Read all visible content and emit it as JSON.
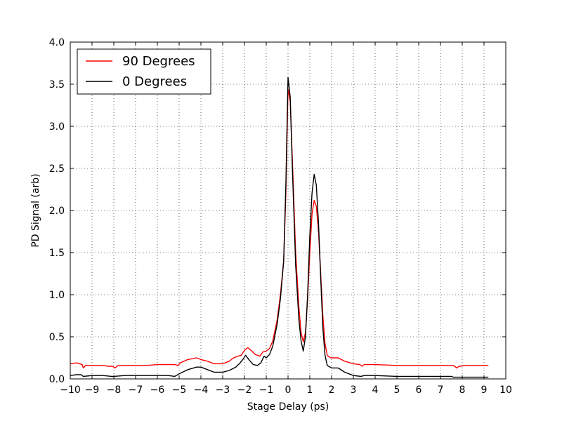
{
  "chart_data": {
    "type": "line",
    "title": "",
    "xlabel": "Stage Delay (ps)",
    "ylabel": "PD Signal (arb)",
    "xlim": [
      -10,
      10
    ],
    "ylim": [
      0.0,
      4.0
    ],
    "grid": true,
    "grid_style": "dotted",
    "legend_position": "top-left",
    "x_ticks": [
      -10,
      -9,
      -8,
      -7,
      -6,
      -5,
      -4,
      -3,
      -2,
      -1,
      0,
      1,
      2,
      3,
      4,
      5,
      6,
      7,
      8,
      9,
      10
    ],
    "x_tick_labels": [
      "−10",
      "−9",
      "−8",
      "−7",
      "−6",
      "−5",
      "−4",
      "−3",
      "−2",
      "−1",
      "0",
      "1",
      "2",
      "3",
      "4",
      "5",
      "6",
      "7",
      "8",
      "9",
      "10"
    ],
    "y_ticks": [
      0.0,
      0.5,
      1.0,
      1.5,
      2.0,
      2.5,
      3.0,
      3.5,
      4.0
    ],
    "y_tick_labels": [
      "0.0",
      "0.5",
      "1.0",
      "1.5",
      "2.0",
      "2.5",
      "3.0",
      "3.5",
      "4.0"
    ],
    "series": [
      {
        "name": "90 Degrees",
        "color": "#ff0000",
        "points": [
          [
            -10.0,
            0.18
          ],
          [
            -9.7,
            0.19
          ],
          [
            -9.45,
            0.17
          ],
          [
            -9.4,
            0.13
          ],
          [
            -9.3,
            0.16
          ],
          [
            -9.0,
            0.16
          ],
          [
            -8.5,
            0.16
          ],
          [
            -8.25,
            0.15
          ],
          [
            -8.05,
            0.15
          ],
          [
            -7.95,
            0.13
          ],
          [
            -7.8,
            0.16
          ],
          [
            -7.5,
            0.16
          ],
          [
            -7.0,
            0.16
          ],
          [
            -6.5,
            0.16
          ],
          [
            -6.0,
            0.17
          ],
          [
            -5.7,
            0.17
          ],
          [
            -5.4,
            0.17
          ],
          [
            -5.2,
            0.17
          ],
          [
            -5.05,
            0.16
          ],
          [
            -4.95,
            0.19
          ],
          [
            -4.6,
            0.23
          ],
          [
            -4.2,
            0.25
          ],
          [
            -4.0,
            0.23
          ],
          [
            -3.7,
            0.21
          ],
          [
            -3.4,
            0.18
          ],
          [
            -3.0,
            0.18
          ],
          [
            -2.7,
            0.21
          ],
          [
            -2.5,
            0.25
          ],
          [
            -2.3,
            0.27
          ],
          [
            -2.15,
            0.28
          ],
          [
            -2.0,
            0.34
          ],
          [
            -1.85,
            0.37
          ],
          [
            -1.7,
            0.34
          ],
          [
            -1.5,
            0.29
          ],
          [
            -1.3,
            0.27
          ],
          [
            -1.15,
            0.32
          ],
          [
            -1.0,
            0.33
          ],
          [
            -0.85,
            0.36
          ],
          [
            -0.7,
            0.45
          ],
          [
            -0.5,
            0.7
          ],
          [
            -0.35,
            1.0
          ],
          [
            -0.2,
            1.4
          ],
          [
            -0.1,
            2.2
          ],
          [
            0.0,
            3.44
          ],
          [
            0.1,
            3.3
          ],
          [
            0.2,
            2.6
          ],
          [
            0.35,
            1.5
          ],
          [
            0.5,
            0.85
          ],
          [
            0.6,
            0.55
          ],
          [
            0.7,
            0.44
          ],
          [
            0.8,
            0.55
          ],
          [
            0.9,
            0.95
          ],
          [
            1.0,
            1.5
          ],
          [
            1.1,
            1.95
          ],
          [
            1.2,
            2.12
          ],
          [
            1.3,
            2.05
          ],
          [
            1.4,
            1.75
          ],
          [
            1.5,
            1.25
          ],
          [
            1.6,
            0.75
          ],
          [
            1.7,
            0.42
          ],
          [
            1.8,
            0.28
          ],
          [
            1.95,
            0.25
          ],
          [
            2.3,
            0.25
          ],
          [
            2.6,
            0.21
          ],
          [
            3.0,
            0.18
          ],
          [
            3.3,
            0.17
          ],
          [
            3.4,
            0.15
          ],
          [
            3.5,
            0.17
          ],
          [
            4.0,
            0.17
          ],
          [
            5.0,
            0.16
          ],
          [
            6.0,
            0.16
          ],
          [
            7.0,
            0.16
          ],
          [
            7.6,
            0.16
          ],
          [
            7.75,
            0.13
          ],
          [
            7.85,
            0.15
          ],
          [
            8.2,
            0.16
          ],
          [
            9.2,
            0.16
          ]
        ]
      },
      {
        "name": "0 Degrees",
        "color": "#000000",
        "points": [
          [
            -10.0,
            0.04
          ],
          [
            -9.7,
            0.05
          ],
          [
            -9.5,
            0.05
          ],
          [
            -9.4,
            0.03
          ],
          [
            -9.0,
            0.04
          ],
          [
            -8.5,
            0.04
          ],
          [
            -8.1,
            0.03
          ],
          [
            -8.0,
            0.03
          ],
          [
            -7.5,
            0.04
          ],
          [
            -7.0,
            0.04
          ],
          [
            -6.5,
            0.04
          ],
          [
            -6.0,
            0.04
          ],
          [
            -5.5,
            0.04
          ],
          [
            -5.2,
            0.03
          ],
          [
            -5.0,
            0.06
          ],
          [
            -4.6,
            0.11
          ],
          [
            -4.2,
            0.14
          ],
          [
            -4.0,
            0.14
          ],
          [
            -3.7,
            0.11
          ],
          [
            -3.4,
            0.08
          ],
          [
            -3.0,
            0.08
          ],
          [
            -2.7,
            0.1
          ],
          [
            -2.4,
            0.14
          ],
          [
            -2.2,
            0.19
          ],
          [
            -2.05,
            0.24
          ],
          [
            -1.95,
            0.28
          ],
          [
            -1.8,
            0.23
          ],
          [
            -1.6,
            0.17
          ],
          [
            -1.4,
            0.16
          ],
          [
            -1.25,
            0.19
          ],
          [
            -1.1,
            0.27
          ],
          [
            -1.0,
            0.25
          ],
          [
            -0.85,
            0.29
          ],
          [
            -0.7,
            0.39
          ],
          [
            -0.5,
            0.65
          ],
          [
            -0.35,
            0.95
          ],
          [
            -0.2,
            1.4
          ],
          [
            -0.1,
            2.3
          ],
          [
            0.0,
            3.58
          ],
          [
            0.1,
            3.35
          ],
          [
            0.2,
            2.5
          ],
          [
            0.35,
            1.35
          ],
          [
            0.5,
            0.7
          ],
          [
            0.6,
            0.45
          ],
          [
            0.7,
            0.33
          ],
          [
            0.8,
            0.5
          ],
          [
            0.9,
            1.0
          ],
          [
            1.0,
            1.7
          ],
          [
            1.1,
            2.2
          ],
          [
            1.2,
            2.43
          ],
          [
            1.3,
            2.3
          ],
          [
            1.4,
            1.85
          ],
          [
            1.5,
            1.2
          ],
          [
            1.6,
            0.6
          ],
          [
            1.7,
            0.28
          ],
          [
            1.8,
            0.16
          ],
          [
            2.0,
            0.13
          ],
          [
            2.3,
            0.13
          ],
          [
            2.6,
            0.08
          ],
          [
            3.0,
            0.04
          ],
          [
            3.35,
            0.03
          ],
          [
            3.5,
            0.04
          ],
          [
            4.0,
            0.04
          ],
          [
            5.0,
            0.03
          ],
          [
            6.0,
            0.03
          ],
          [
            7.0,
            0.03
          ],
          [
            7.5,
            0.03
          ],
          [
            7.6,
            0.02
          ],
          [
            7.8,
            0.02
          ],
          [
            8.5,
            0.02
          ],
          [
            9.2,
            0.02
          ]
        ]
      }
    ]
  }
}
